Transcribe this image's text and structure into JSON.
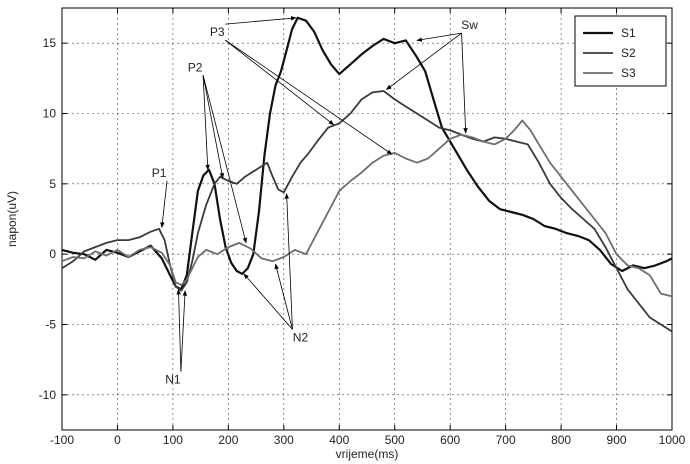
{
  "chart_data": {
    "type": "line",
    "xlabel": "vrijeme(ms)",
    "ylabel": "napon(uV)",
    "xlim": [
      -100,
      1000
    ],
    "ylim": [
      -12.5,
      17.5
    ],
    "xticks": [
      -100,
      0,
      100,
      200,
      300,
      400,
      500,
      600,
      700,
      800,
      900,
      1000
    ],
    "yticks": [
      -10,
      -5,
      0,
      5,
      10,
      15
    ],
    "grid": true,
    "legend_position": "top-right",
    "series": [
      {
        "name": "S1",
        "color": "#111111",
        "points": [
          [
            -100,
            0.3
          ],
          [
            -80,
            0.1
          ],
          [
            -60,
            0.0
          ],
          [
            -40,
            -0.4
          ],
          [
            -20,
            0.3
          ],
          [
            0,
            0.1
          ],
          [
            20,
            -0.2
          ],
          [
            40,
            0.2
          ],
          [
            60,
            0.6
          ],
          [
            80,
            -0.3
          ],
          [
            95,
            -1.5
          ],
          [
            105,
            -2.3
          ],
          [
            115,
            -2.5
          ],
          [
            125,
            -1.5
          ],
          [
            135,
            1.5
          ],
          [
            145,
            4.5
          ],
          [
            155,
            5.6
          ],
          [
            165,
            6.0
          ],
          [
            175,
            5.0
          ],
          [
            185,
            2.5
          ],
          [
            195,
            0.5
          ],
          [
            205,
            -0.6
          ],
          [
            215,
            -1.2
          ],
          [
            225,
            -1.4
          ],
          [
            235,
            -1.0
          ],
          [
            245,
            0.0
          ],
          [
            255,
            3.0
          ],
          [
            265,
            7.0
          ],
          [
            275,
            10.0
          ],
          [
            285,
            12.0
          ],
          [
            295,
            13.0
          ],
          [
            305,
            14.5
          ],
          [
            315,
            16.0
          ],
          [
            325,
            16.8
          ],
          [
            340,
            16.6
          ],
          [
            355,
            15.8
          ],
          [
            370,
            14.5
          ],
          [
            385,
            13.5
          ],
          [
            400,
            12.8
          ],
          [
            420,
            13.5
          ],
          [
            440,
            14.2
          ],
          [
            460,
            14.8
          ],
          [
            480,
            15.3
          ],
          [
            500,
            15.0
          ],
          [
            520,
            15.2
          ],
          [
            540,
            14.0
          ],
          [
            555,
            13.0
          ],
          [
            570,
            11.0
          ],
          [
            585,
            9.0
          ],
          [
            600,
            8.0
          ],
          [
            615,
            7.0
          ],
          [
            630,
            6.0
          ],
          [
            650,
            4.8
          ],
          [
            670,
            3.8
          ],
          [
            690,
            3.2
          ],
          [
            710,
            3.0
          ],
          [
            730,
            2.8
          ],
          [
            750,
            2.5
          ],
          [
            770,
            2.0
          ],
          [
            790,
            1.8
          ],
          [
            810,
            1.5
          ],
          [
            830,
            1.3
          ],
          [
            850,
            1.0
          ],
          [
            870,
            0.3
          ],
          [
            890,
            -0.7
          ],
          [
            910,
            -1.2
          ],
          [
            930,
            -0.8
          ],
          [
            950,
            -1.0
          ],
          [
            970,
            -0.8
          ],
          [
            990,
            -0.5
          ],
          [
            1000,
            -0.3
          ]
        ]
      },
      {
        "name": "S2",
        "color": "#3a3a3a",
        "points": [
          [
            -100,
            -1.0
          ],
          [
            -80,
            -0.5
          ],
          [
            -60,
            0.2
          ],
          [
            -40,
            0.5
          ],
          [
            -20,
            0.8
          ],
          [
            0,
            1.0
          ],
          [
            20,
            1.0
          ],
          [
            40,
            1.2
          ],
          [
            60,
            1.6
          ],
          [
            75,
            1.8
          ],
          [
            85,
            1.0
          ],
          [
            95,
            -0.8
          ],
          [
            105,
            -2.3
          ],
          [
            115,
            -2.6
          ],
          [
            125,
            -2.0
          ],
          [
            135,
            -0.5
          ],
          [
            145,
            1.5
          ],
          [
            160,
            3.5
          ],
          [
            175,
            5.0
          ],
          [
            185,
            5.5
          ],
          [
            200,
            5.2
          ],
          [
            215,
            5.0
          ],
          [
            230,
            5.5
          ],
          [
            250,
            6.0
          ],
          [
            270,
            6.5
          ],
          [
            280,
            5.5
          ],
          [
            290,
            4.6
          ],
          [
            300,
            4.4
          ],
          [
            315,
            5.5
          ],
          [
            330,
            6.5
          ],
          [
            345,
            7.2
          ],
          [
            360,
            8.0
          ],
          [
            380,
            9.0
          ],
          [
            400,
            9.3
          ],
          [
            420,
            10.0
          ],
          [
            440,
            11.0
          ],
          [
            460,
            11.5
          ],
          [
            480,
            11.6
          ],
          [
            500,
            11.0
          ],
          [
            520,
            10.5
          ],
          [
            540,
            10.0
          ],
          [
            560,
            9.5
          ],
          [
            580,
            9.0
          ],
          [
            600,
            8.8
          ],
          [
            620,
            8.5
          ],
          [
            640,
            8.2
          ],
          [
            660,
            8.0
          ],
          [
            680,
            8.3
          ],
          [
            700,
            8.2
          ],
          [
            720,
            8.0
          ],
          [
            740,
            7.8
          ],
          [
            760,
            6.5
          ],
          [
            780,
            5.0
          ],
          [
            800,
            4.0
          ],
          [
            820,
            3.2
          ],
          [
            840,
            2.5
          ],
          [
            860,
            1.8
          ],
          [
            880,
            0.5
          ],
          [
            900,
            -1.0
          ],
          [
            920,
            -2.5
          ],
          [
            940,
            -3.5
          ],
          [
            960,
            -4.5
          ],
          [
            980,
            -5.0
          ],
          [
            1000,
            -5.5
          ]
        ]
      },
      {
        "name": "S3",
        "color": "#6e6e6e",
        "points": [
          [
            -100,
            -0.5
          ],
          [
            -80,
            -0.2
          ],
          [
            -60,
            -0.3
          ],
          [
            -40,
            0.2
          ],
          [
            -20,
            -0.1
          ],
          [
            0,
            0.3
          ],
          [
            20,
            -0.2
          ],
          [
            40,
            0.3
          ],
          [
            60,
            0.5
          ],
          [
            80,
            0.1
          ],
          [
            95,
            -0.8
          ],
          [
            105,
            -2.0
          ],
          [
            115,
            -2.2
          ],
          [
            125,
            -1.8
          ],
          [
            135,
            -1.0
          ],
          [
            145,
            -0.2
          ],
          [
            160,
            0.3
          ],
          [
            180,
            0.0
          ],
          [
            200,
            0.5
          ],
          [
            220,
            0.8
          ],
          [
            240,
            0.4
          ],
          [
            260,
            -0.3
          ],
          [
            280,
            -0.5
          ],
          [
            300,
            -0.2
          ],
          [
            320,
            0.3
          ],
          [
            340,
            0.0
          ],
          [
            360,
            1.5
          ],
          [
            380,
            3.0
          ],
          [
            400,
            4.5
          ],
          [
            420,
            5.2
          ],
          [
            440,
            5.8
          ],
          [
            460,
            6.5
          ],
          [
            480,
            7.0
          ],
          [
            500,
            7.2
          ],
          [
            520,
            6.8
          ],
          [
            540,
            6.5
          ],
          [
            560,
            6.8
          ],
          [
            580,
            7.5
          ],
          [
            600,
            8.2
          ],
          [
            620,
            8.5
          ],
          [
            640,
            8.3
          ],
          [
            660,
            8.0
          ],
          [
            680,
            7.8
          ],
          [
            700,
            8.2
          ],
          [
            715,
            8.8
          ],
          [
            730,
            9.5
          ],
          [
            745,
            8.8
          ],
          [
            760,
            7.8
          ],
          [
            780,
            6.5
          ],
          [
            800,
            5.5
          ],
          [
            820,
            4.5
          ],
          [
            840,
            3.5
          ],
          [
            860,
            2.5
          ],
          [
            880,
            1.5
          ],
          [
            900,
            0.0
          ],
          [
            920,
            -0.8
          ],
          [
            940,
            -1.0
          ],
          [
            960,
            -1.5
          ],
          [
            980,
            -2.8
          ],
          [
            1000,
            -3.0
          ]
        ]
      }
    ],
    "annotations": [
      {
        "label": "P1",
        "text_at": [
          75,
          5.5
        ],
        "arrows_to": [
          [
            80,
            1.9
          ]
        ]
      },
      {
        "label": "P2",
        "text_at": [
          140,
          13
        ],
        "arrows_to": [
          [
            163,
            6.0
          ],
          [
            190,
            5.4
          ],
          [
            232,
            0.8
          ]
        ]
      },
      {
        "label": "P3",
        "text_at": [
          180,
          15.5
        ],
        "arrows_to": [
          [
            322,
            16.8
          ],
          [
            390,
            9.2
          ],
          [
            495,
            7.1
          ]
        ]
      },
      {
        "label": "Sw",
        "text_at": [
          635,
          16.0
        ],
        "arrows_to": [
          [
            540,
            15.2
          ],
          [
            485,
            11.7
          ],
          [
            628,
            8.6
          ]
        ]
      },
      {
        "label": "N1",
        "text_at": [
          100,
          -9.2
        ],
        "arrows_to": [
          [
            110,
            -2.5
          ],
          [
            122,
            -2.6
          ]
        ]
      },
      {
        "label": "N2",
        "text_at": [
          330,
          -6.2
        ],
        "arrows_to": [
          [
            228,
            -1.4
          ],
          [
            285,
            -0.7
          ],
          [
            305,
            4.3
          ]
        ]
      }
    ]
  }
}
